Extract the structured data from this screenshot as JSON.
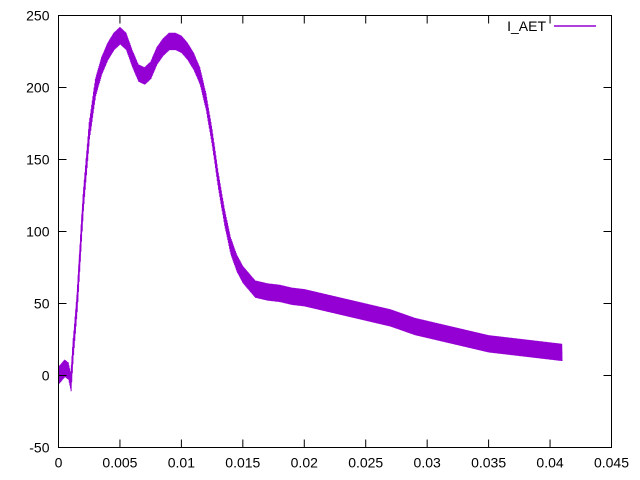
{
  "chart_data": {
    "type": "line",
    "title": "",
    "xlabel": "",
    "ylabel": "",
    "xlim": [
      0,
      0.045
    ],
    "ylim": [
      -50,
      250
    ],
    "xticks": [
      0,
      0.005,
      0.01,
      0.015,
      0.02,
      0.025,
      0.03,
      0.035,
      0.04,
      0.045
    ],
    "xtick_labels": [
      "0",
      "0.005",
      "0.01",
      "0.015",
      "0.02",
      "0.025",
      "0.03",
      "0.035",
      "0.04",
      "0.045"
    ],
    "yticks": [
      -50,
      0,
      50,
      100,
      150,
      200,
      250
    ],
    "ytick_labels": [
      "-50",
      "0",
      "50",
      "100",
      "150",
      "200",
      "250"
    ],
    "grid": false,
    "legend_position": "top-right",
    "series": [
      {
        "name": "I_AET",
        "color": "#9400d3",
        "ripple": 6,
        "x": [
          0,
          0.0005,
          0.0008,
          0.001,
          0.0012,
          0.0015,
          0.002,
          0.0025,
          0.003,
          0.0035,
          0.004,
          0.0045,
          0.005,
          0.0055,
          0.006,
          0.0065,
          0.007,
          0.0075,
          0.008,
          0.0085,
          0.009,
          0.0095,
          0.01,
          0.0105,
          0.011,
          0.0115,
          0.012,
          0.0125,
          0.013,
          0.0135,
          0.014,
          0.0145,
          0.015,
          0.0155,
          0.016,
          0.017,
          0.018,
          0.019,
          0.02,
          0.021,
          0.022,
          0.023,
          0.024,
          0.025,
          0.026,
          0.027,
          0.028,
          0.029,
          0.03,
          0.031,
          0.032,
          0.033,
          0.034,
          0.035,
          0.036,
          0.037,
          0.038,
          0.039,
          0.04,
          0.041
        ],
        "y": [
          0,
          5,
          3,
          -5,
          20,
          50,
          120,
          170,
          200,
          215,
          225,
          232,
          236,
          232,
          220,
          210,
          208,
          212,
          222,
          228,
          232,
          232,
          230,
          225,
          218,
          208,
          190,
          165,
          135,
          110,
          90,
          78,
          70,
          65,
          60,
          58,
          57,
          55,
          54,
          52,
          50,
          48,
          46,
          44,
          42,
          40,
          37,
          34,
          32,
          30,
          28,
          26,
          24,
          22,
          21,
          20,
          19,
          18,
          17,
          16
        ]
      }
    ]
  }
}
